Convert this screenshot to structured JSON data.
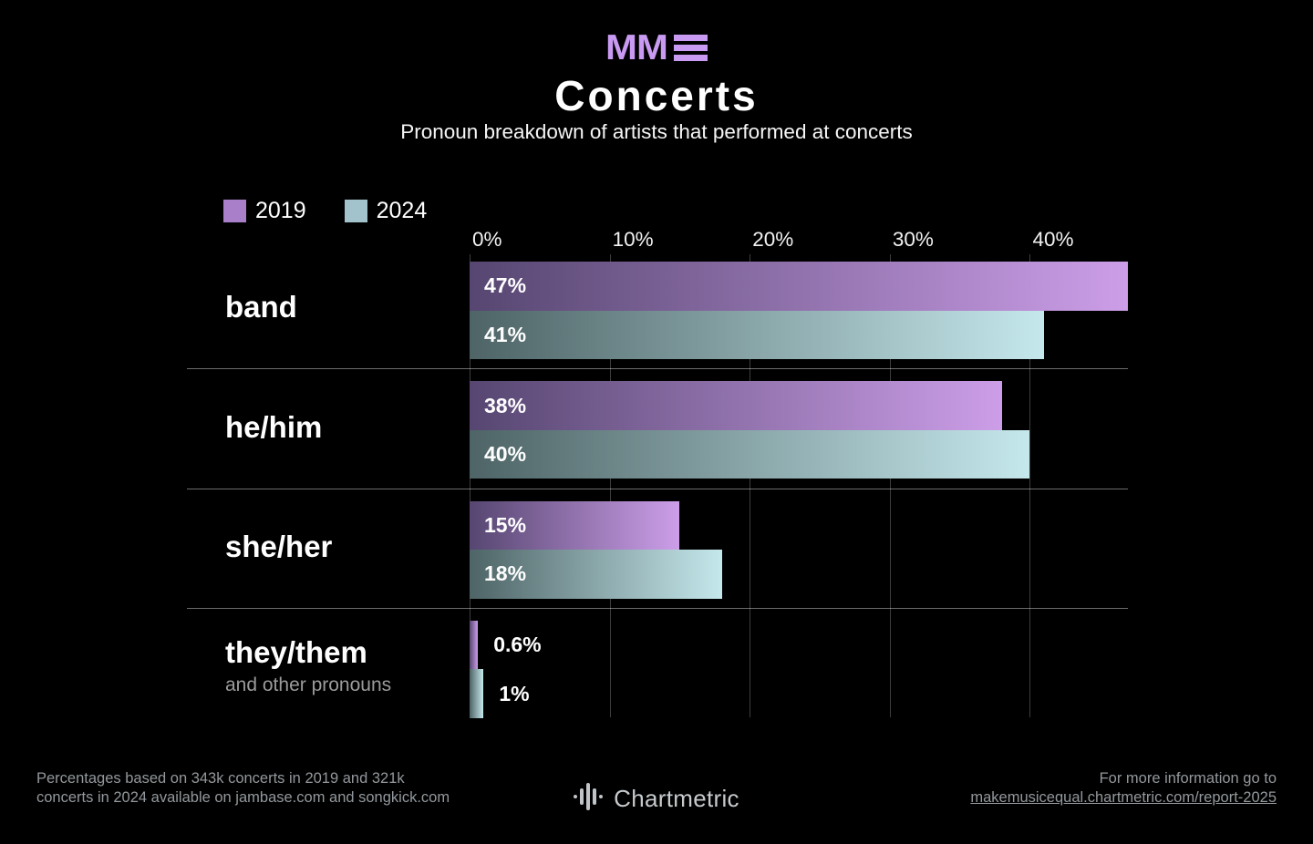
{
  "header": {
    "logo_text": "MM",
    "title": "Concerts",
    "subtitle": "Pronoun breakdown of artists that performed at concerts"
  },
  "legend": [
    {
      "label": "2019",
      "color": "#a87fc8"
    },
    {
      "label": "2024",
      "color": "#a2c2cc"
    }
  ],
  "chart_data": {
    "type": "bar",
    "orientation": "horizontal",
    "title": "Concerts",
    "subtitle": "Pronoun breakdown of artists that performed at concerts",
    "categories": [
      "band",
      "he/him",
      "she/her",
      "they/them"
    ],
    "category_subtitles": [
      "",
      "",
      "",
      "and other pronouns"
    ],
    "series": [
      {
        "name": "2019",
        "color_start": "#564671",
        "color_end": "#cc9ee8",
        "values": [
          47,
          38,
          15,
          0.6
        ],
        "labels": [
          "47%",
          "38%",
          "15%",
          "0.6%"
        ]
      },
      {
        "name": "2024",
        "color_start": "#4e6466",
        "color_end": "#c5e8ec",
        "values": [
          41,
          40,
          18,
          1
        ],
        "labels": [
          "41%",
          "40%",
          "18%",
          "1%"
        ]
      }
    ],
    "x_ticks": [
      "0%",
      "10%",
      "20%",
      "30%",
      "40%"
    ],
    "x_tick_values": [
      0,
      10,
      20,
      30,
      40
    ],
    "xlim": [
      0,
      47
    ],
    "grid": true,
    "legend_position": "top-left"
  },
  "footer": {
    "left_line1": "Percentages based on 343k concerts in 2019 and 321k",
    "left_line2": "concerts in 2024 available on jambase.com and songkick.com",
    "brand": "Chartmetric",
    "right_line1": "For more information go to",
    "right_line2": "makemusicequal.chartmetric.com/report-2025"
  }
}
